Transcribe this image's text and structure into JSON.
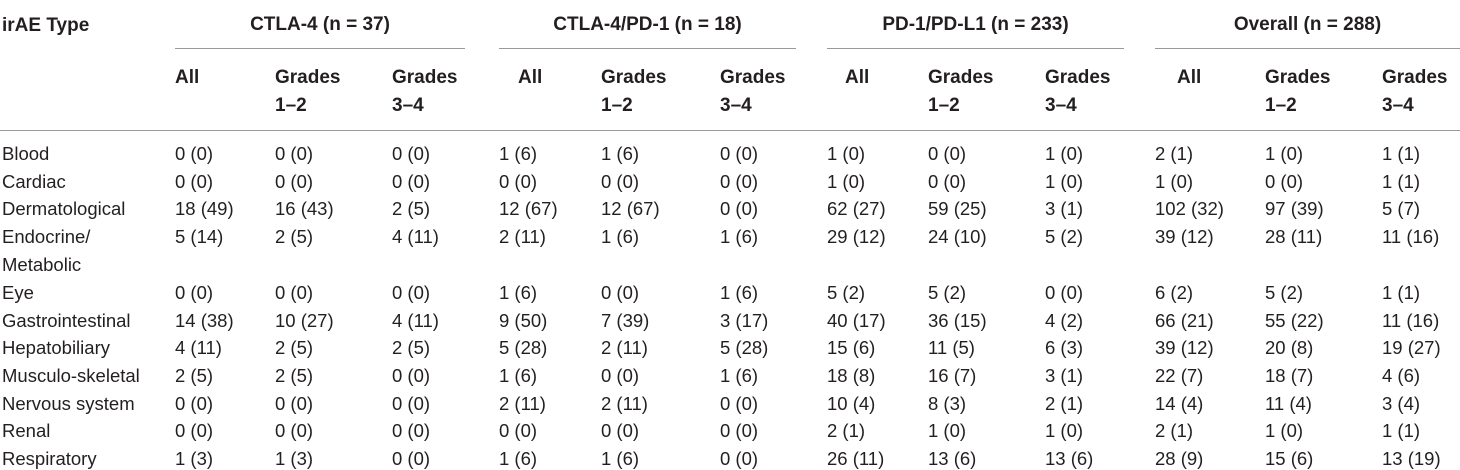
{
  "table": {
    "corner_label": "irAE Type",
    "groups": [
      {
        "label": "CTLA-4 (n = 37)"
      },
      {
        "label": "CTLA-4/PD-1 (n = 18)"
      },
      {
        "label": "PD-1/PD-L1 (n = 233)"
      },
      {
        "label": "Overall (n = 288)"
      }
    ],
    "subheaders": {
      "all": "All",
      "g12_line1": "Grades",
      "g12_line2": "1–2",
      "g34_line1": "Grades",
      "g34_line2": "3–4"
    },
    "rows": [
      {
        "label": "Blood",
        "values": [
          "0 (0)",
          "0 (0)",
          "0 (0)",
          "1 (6)",
          "1 (6)",
          "0 (0)",
          "1 (0)",
          "0 (0)",
          "1 (0)",
          "2 (1)",
          "1 (0)",
          "1 (1)"
        ]
      },
      {
        "label": "Cardiac",
        "values": [
          "0 (0)",
          "0 (0)",
          "0 (0)",
          "0 (0)",
          "0 (0)",
          "0 (0)",
          "1 (0)",
          "0 (0)",
          "1 (0)",
          "1 (0)",
          "0 (0)",
          "1 (1)"
        ]
      },
      {
        "label": "Dermatological",
        "values": [
          "18 (49)",
          "16 (43)",
          "2 (5)",
          "12 (67)",
          "12 (67)",
          "0 (0)",
          "62 (27)",
          "59 (25)",
          "3 (1)",
          "102 (32)",
          "97 (39)",
          "5 (7)"
        ]
      },
      {
        "label": "Endocrine/",
        "label2": "Metabolic",
        "values": [
          "5 (14)",
          "2 (5)",
          "4 (11)",
          "2 (11)",
          "1 (6)",
          "1 (6)",
          "29 (12)",
          "24 (10)",
          "5 (2)",
          "39 (12)",
          "28 (11)",
          "11 (16)"
        ]
      },
      {
        "label": "Eye",
        "values": [
          "0 (0)",
          "0 (0)",
          "0 (0)",
          "1 (6)",
          "0 (0)",
          "1 (6)",
          "5 (2)",
          "5 (2)",
          "0 (0)",
          "6 (2)",
          "5 (2)",
          "1 (1)"
        ]
      },
      {
        "label": "Gastrointestinal",
        "values": [
          "14 (38)",
          "10 (27)",
          "4 (11)",
          "9 (50)",
          "7 (39)",
          "3 (17)",
          "40 (17)",
          "36 (15)",
          "4 (2)",
          "66 (21)",
          "55 (22)",
          "11 (16)"
        ]
      },
      {
        "label": "Hepatobiliary",
        "values": [
          "4 (11)",
          "2 (5)",
          "2 (5)",
          "5 (28)",
          "2 (11)",
          "5 (28)",
          "15 (6)",
          "11 (5)",
          "6 (3)",
          "39 (12)",
          "20 (8)",
          "19 (27)"
        ]
      },
      {
        "label": "Musculo-skeletal",
        "values": [
          "2 (5)",
          "2 (5)",
          "0 (0)",
          "1 (6)",
          "0 (0)",
          "1 (6)",
          "18 (8)",
          "16 (7)",
          "3 (1)",
          "22 (7)",
          "18 (7)",
          "4 (6)"
        ]
      },
      {
        "label": "Nervous system",
        "values": [
          "0 (0)",
          "0 (0)",
          "0 (0)",
          "2 (11)",
          "2 (11)",
          "0 (0)",
          "10 (4)",
          "8 (3)",
          "2 (1)",
          "14 (4)",
          "11 (4)",
          "3 (4)"
        ]
      },
      {
        "label": "Renal",
        "values": [
          "0 (0)",
          "0 (0)",
          "0 (0)",
          "0 (0)",
          "0 (0)",
          "0 (0)",
          "2 (1)",
          "1 (0)",
          "1 (0)",
          "2 (1)",
          "1 (0)",
          "1 (1)"
        ]
      },
      {
        "label": "Respiratory",
        "values": [
          "1 (3)",
          "1 (3)",
          "0 (0)",
          "1 (6)",
          "1 (6)",
          "0 (0)",
          "26 (11)",
          "13 (6)",
          "13 (6)",
          "28 (9)",
          "15 (6)",
          "13 (19)"
        ]
      }
    ]
  }
}
